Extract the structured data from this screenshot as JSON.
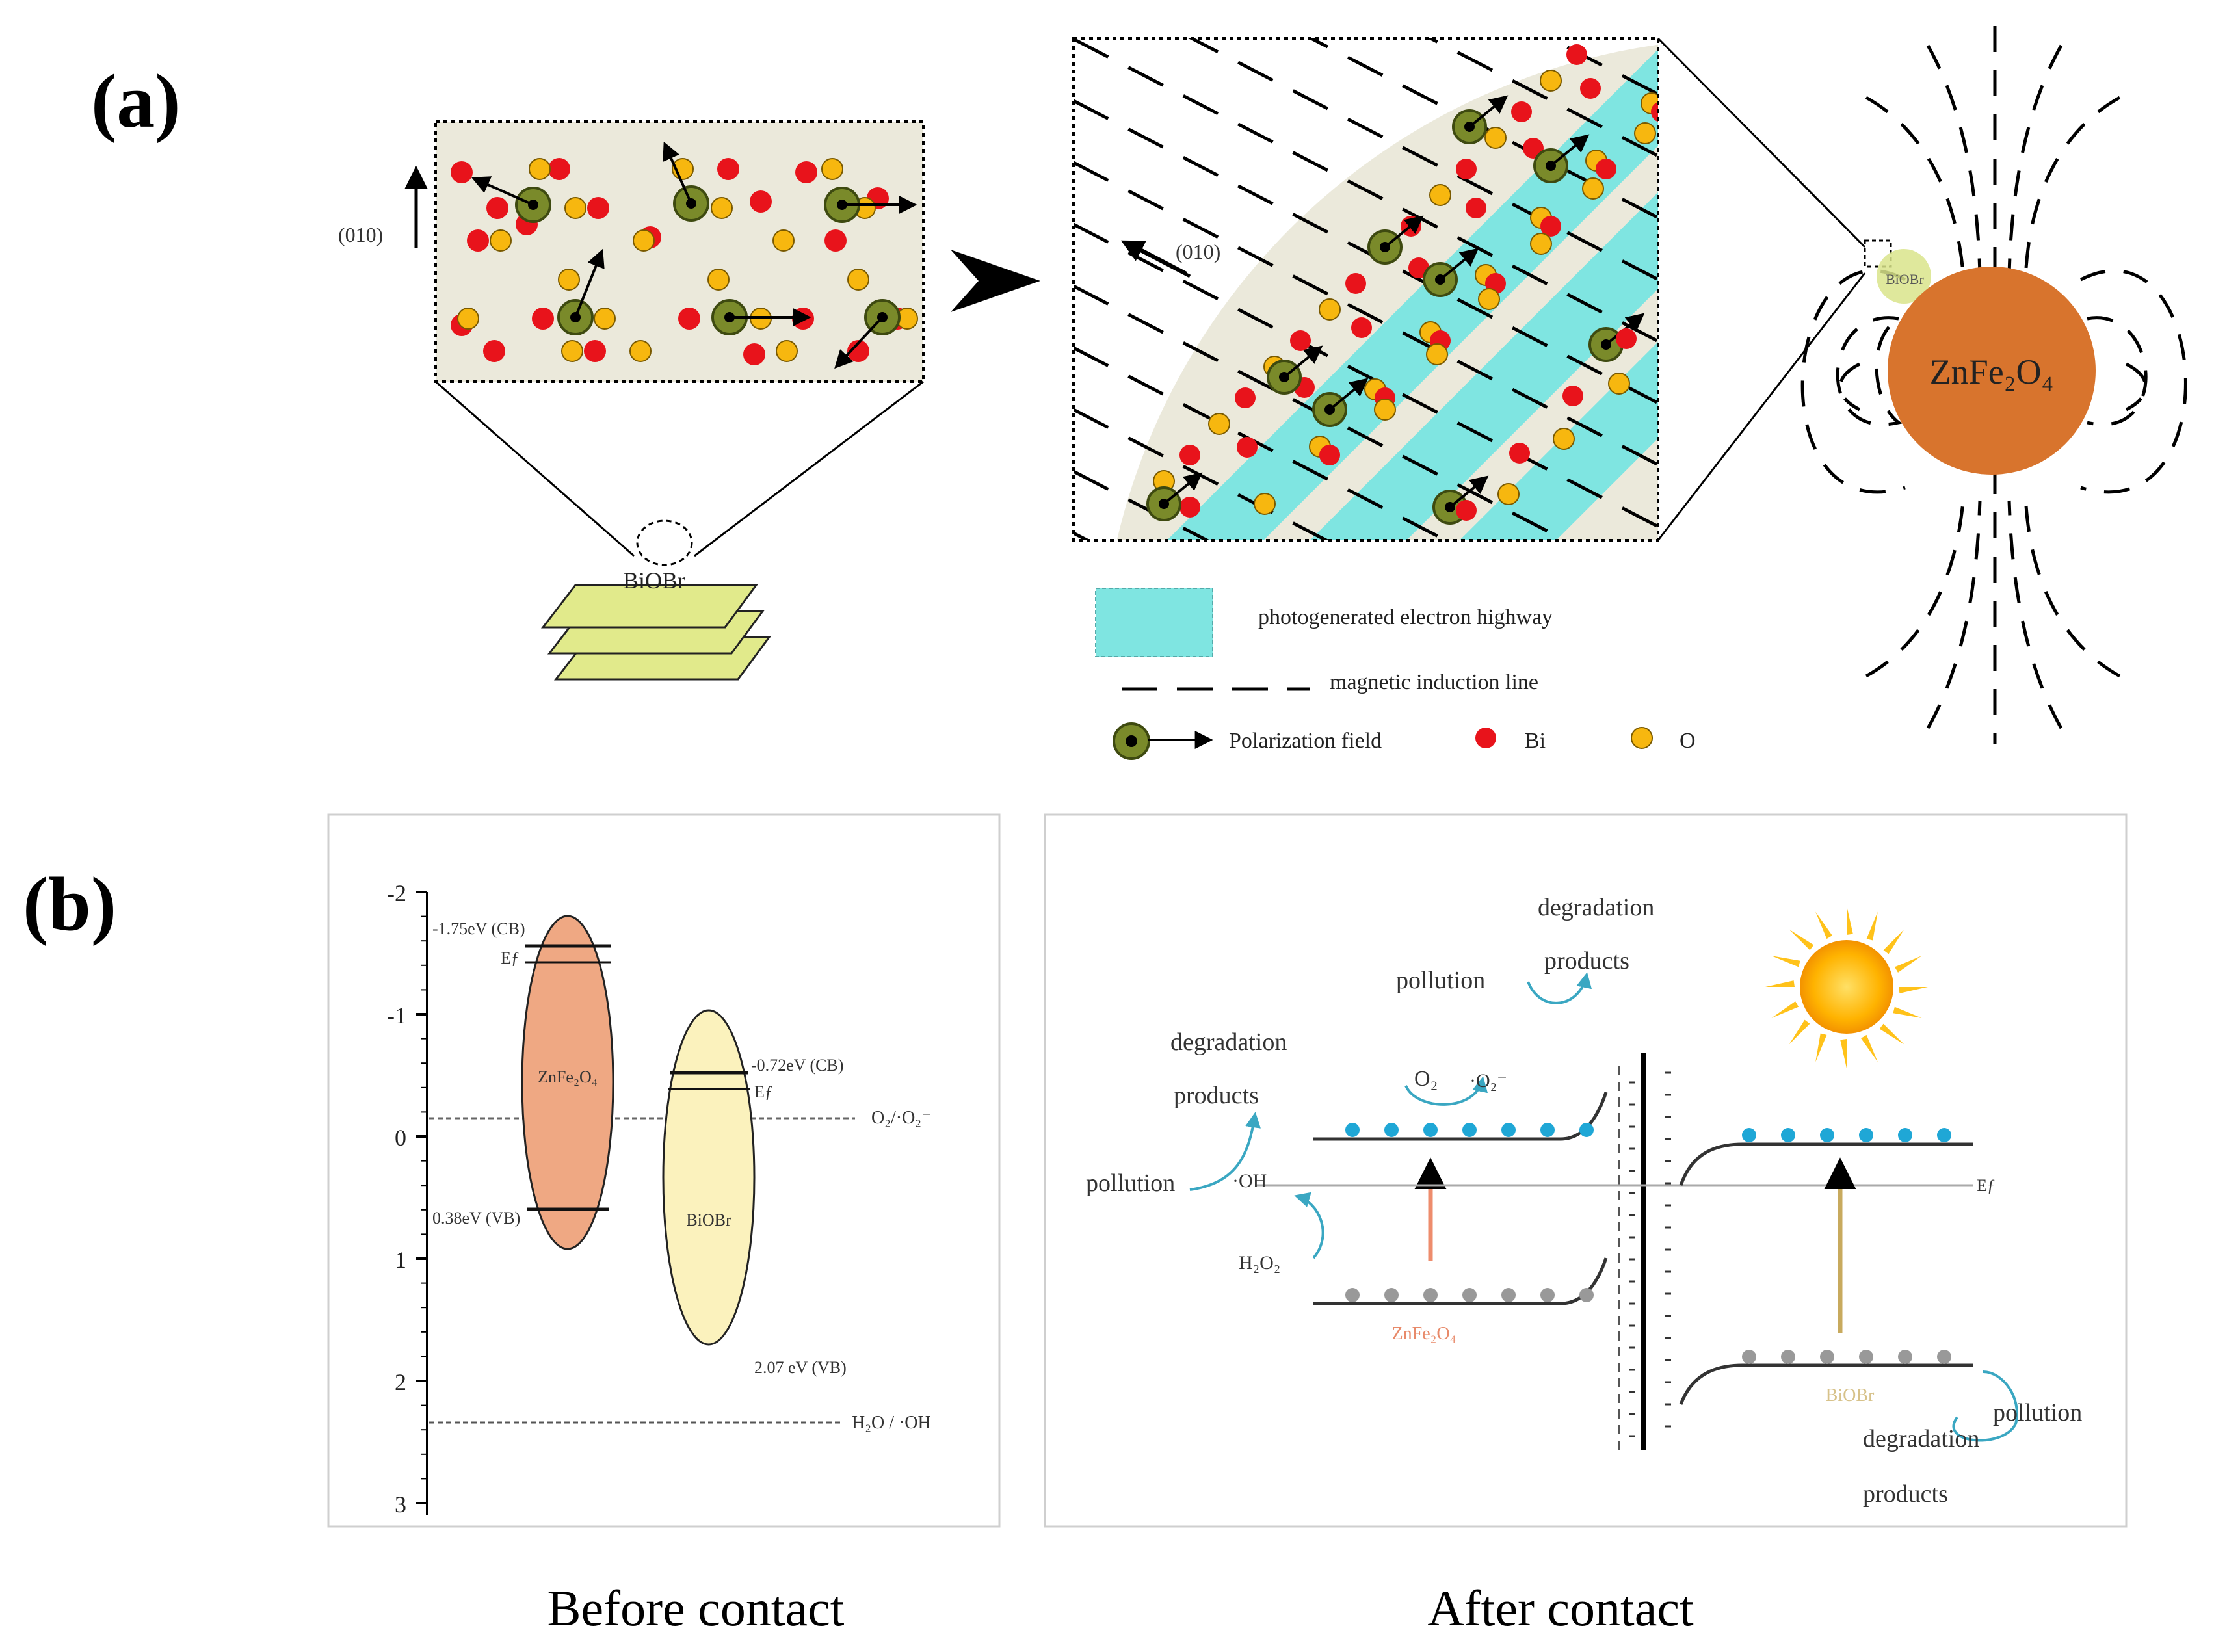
{
  "panel_a": {
    "label": "(a)",
    "lattice_direction": "(010)",
    "lattice_direction_right": "(010)",
    "biobr_label": "BiOBr",
    "small_particle_label": "BiOBr",
    "zfo_label": "ZnFe₂O₄",
    "legend": {
      "highway": "photogenerated electron highway",
      "induction": "magnetic induction line",
      "polarization": "Polarization field",
      "bi": "Bi",
      "o": "O"
    },
    "colors": {
      "bi": "#e8131b",
      "o": "#f7b70f",
      "highway": "#7fe5e1",
      "zfo": "#d8742d",
      "lattice_bg": "#ebe9db",
      "biobr_plate": "#e1ea8b"
    }
  },
  "panel_b": {
    "label": "(b)",
    "before": {
      "caption": "Before contact",
      "y_ticks": [
        "-2",
        "-1",
        "0",
        "1",
        "2",
        "3"
      ],
      "zfo_cb": "-1.75eV (CB)",
      "zfo_ef": "Eƒ",
      "zfo_vb": "0.38eV (VB)",
      "zfo_name": "ZnFe₂O₄",
      "biobr_cb": "-0.72eV (CB)",
      "biobr_ef": "Eƒ",
      "biobr_vb": "2.07 eV (VB)",
      "biobr_name": "BiOBr",
      "o2_label": "O₂/·O₂⁻",
      "h2o_label": "H₂O / ·OH"
    },
    "after": {
      "caption": "After contact",
      "degradation_top": "degradation",
      "products_top": "products",
      "pollution_top": "pollution",
      "o2": "O₂",
      "o2_radical": "·O₂⁻",
      "degradation_left": "degradation",
      "products_left": "products",
      "pollution_left": "pollution",
      "oh": "·OH",
      "h2o2": "H₂O₂",
      "zfo_name": "ZnFe₂O₄",
      "biobr_name": "BiOBr",
      "ef": "Eƒ",
      "pollution_right": "pollution",
      "degradation_right": "degradation",
      "products_right": "products"
    }
  }
}
